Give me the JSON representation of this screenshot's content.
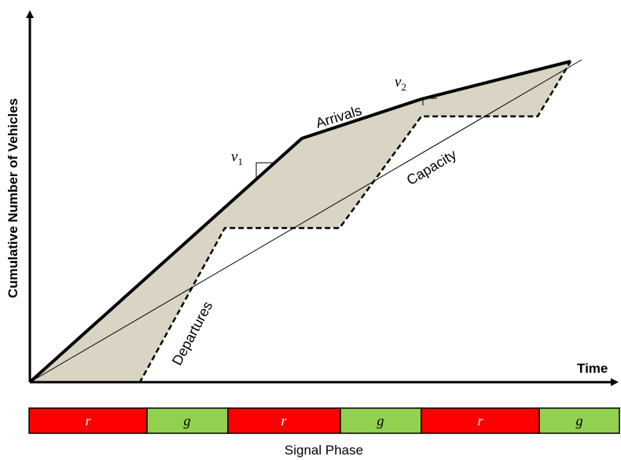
{
  "axes": {
    "y_label": "Cumulative Number of Vehicles",
    "x_label": "Time"
  },
  "curves": {
    "arrivals_label": "Arrivals",
    "departures_label": "Departures",
    "capacity_label": "Capacity",
    "v1_label": "v",
    "v1_sub": "1",
    "v2_label": "v",
    "v2_sub": "2"
  },
  "colors": {
    "queue_fill": "#d9d4c3",
    "red_phase": "#ff0000",
    "green_phase": "#92d050",
    "line": "#000000"
  },
  "signal_phase": {
    "caption": "Signal Phase",
    "phases": [
      {
        "label": "r",
        "color": "red"
      },
      {
        "label": "g",
        "color": "green"
      },
      {
        "label": "r",
        "color": "red"
      },
      {
        "label": "g",
        "color": "green"
      },
      {
        "label": "r",
        "color": "red"
      },
      {
        "label": "g",
        "color": "green"
      }
    ]
  }
}
